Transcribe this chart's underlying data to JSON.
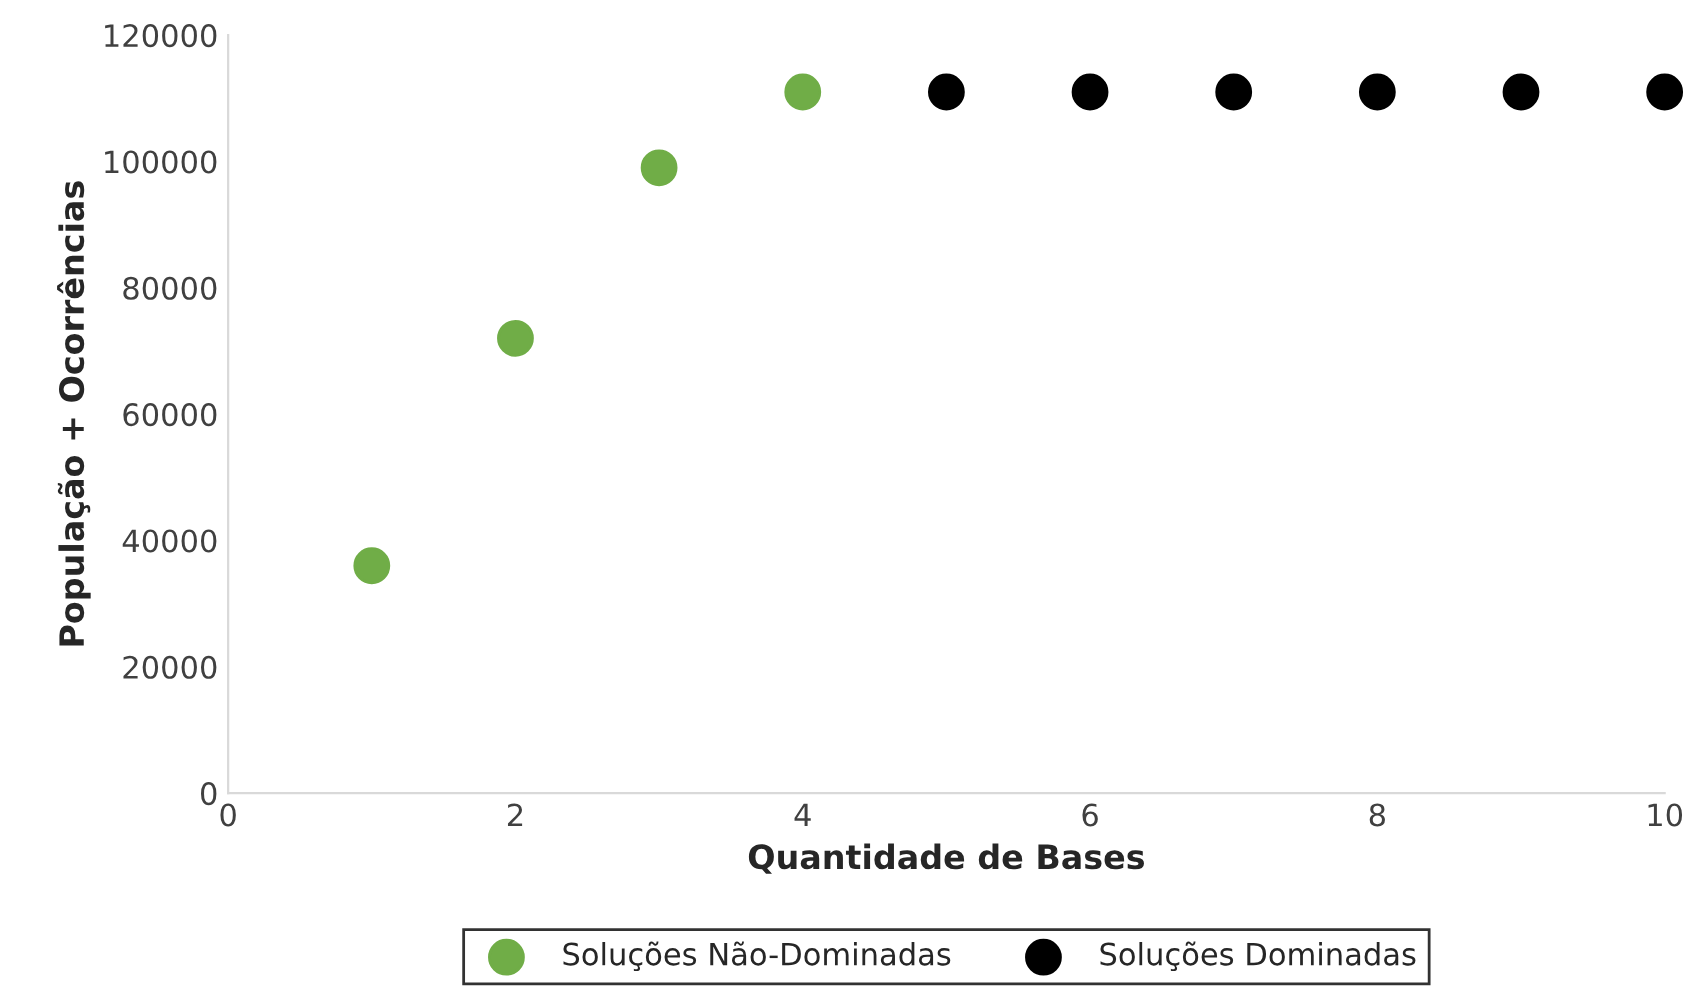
{
  "chart_data": {
    "type": "scatter",
    "xlabel": "Quantidade de Bases",
    "ylabel": "População + Ocorrências",
    "xlim": [
      0,
      10
    ],
    "xticks": [
      0,
      2,
      4,
      6,
      8,
      10
    ],
    "ylim": [
      0,
      120000
    ],
    "yticks": [
      0,
      20000,
      40000,
      60000,
      80000,
      100000,
      120000
    ],
    "grid": false,
    "legend": "bottom",
    "marker": "circle",
    "series": [
      {
        "name": "Soluções Não-Dominadas",
        "color": "#70ad47",
        "x": [
          1,
          2,
          3,
          4
        ],
        "values": [
          36000,
          72000,
          99000,
          111000
        ]
      },
      {
        "name": "Soluções Dominadas",
        "color": "#000000",
        "x": [
          5,
          6,
          7,
          8,
          9,
          10
        ],
        "values": [
          111000,
          111000,
          111000,
          111000,
          111000,
          111000
        ]
      }
    ]
  }
}
